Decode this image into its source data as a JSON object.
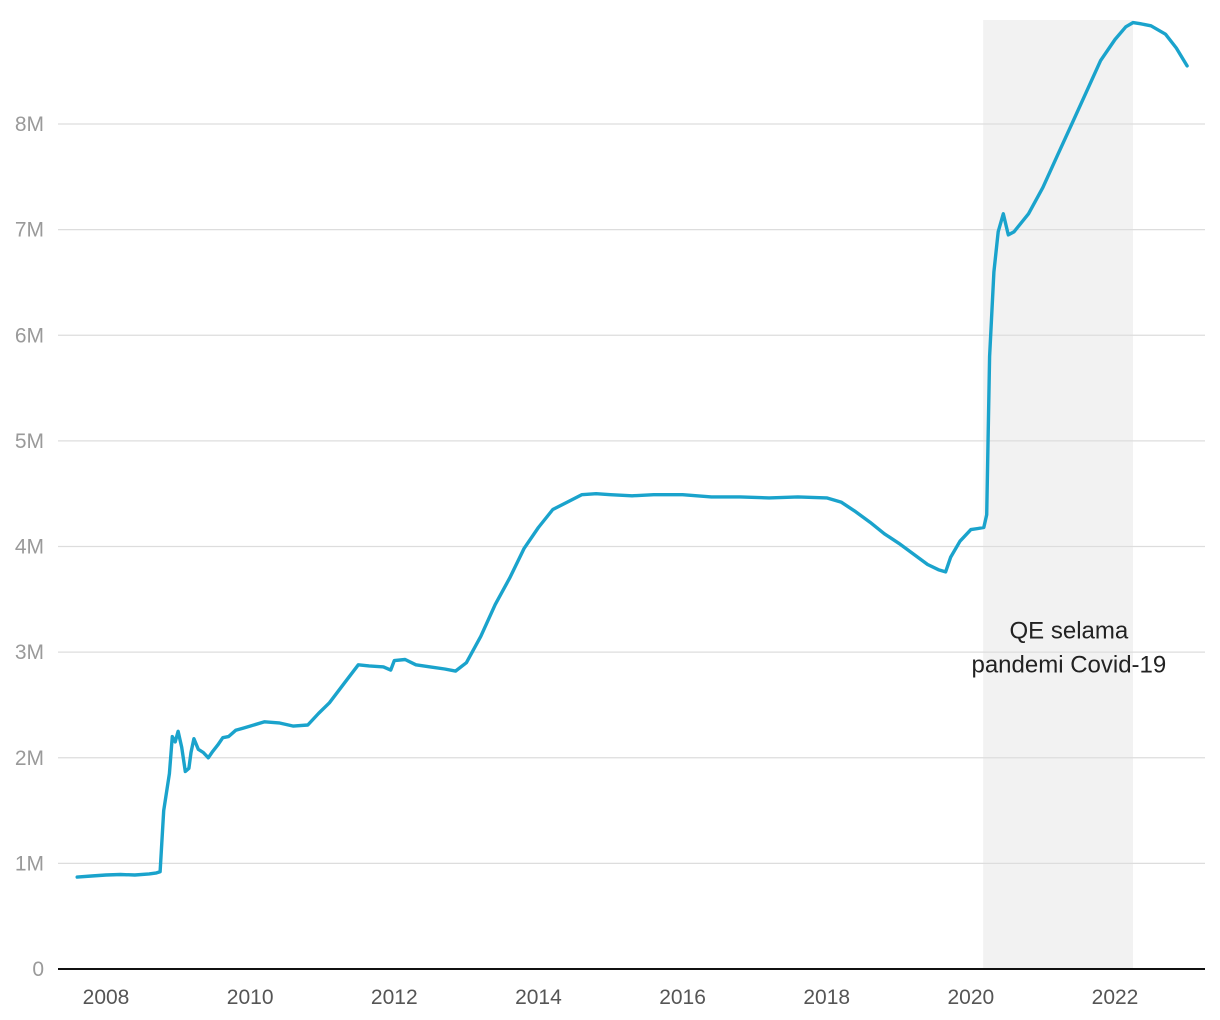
{
  "chart_data": {
    "type": "line",
    "title": "",
    "xlabel": "",
    "ylabel": "",
    "xlim": [
      2007.4,
      2023.25
    ],
    "ylim": [
      0,
      9000000
    ],
    "y_ticks": [
      {
        "value": 0,
        "label": "0"
      },
      {
        "value": 1000000,
        "label": "1M"
      },
      {
        "value": 2000000,
        "label": "2M"
      },
      {
        "value": 3000000,
        "label": "3M"
      },
      {
        "value": 4000000,
        "label": "4M"
      },
      {
        "value": 5000000,
        "label": "5M"
      },
      {
        "value": 6000000,
        "label": "6M"
      },
      {
        "value": 7000000,
        "label": "7M"
      },
      {
        "value": 8000000,
        "label": "8M"
      }
    ],
    "x_ticks": [
      {
        "value": 2008,
        "label": "2008"
      },
      {
        "value": 2010,
        "label": "2010"
      },
      {
        "value": 2012,
        "label": "2012"
      },
      {
        "value": 2014,
        "label": "2014"
      },
      {
        "value": 2016,
        "label": "2016"
      },
      {
        "value": 2018,
        "label": "2018"
      },
      {
        "value": 2020,
        "label": "2020"
      },
      {
        "value": 2022,
        "label": "2022"
      }
    ],
    "grid": true,
    "series": [
      {
        "color": "#1aa3cc",
        "x": [
          2007.6,
          2007.8,
          2008.0,
          2008.2,
          2008.4,
          2008.6,
          2008.7,
          2008.75,
          2008.8,
          2008.88,
          2008.92,
          2008.96,
          2009.0,
          2009.05,
          2009.1,
          2009.15,
          2009.18,
          2009.22,
          2009.28,
          2009.35,
          2009.42,
          2009.48,
          2009.55,
          2009.62,
          2009.7,
          2009.8,
          2009.9,
          2010.0,
          2010.2,
          2010.4,
          2010.6,
          2010.8,
          2010.95,
          2011.1,
          2011.3,
          2011.5,
          2011.65,
          2011.85,
          2011.95,
          2012.0,
          2012.15,
          2012.3,
          2012.5,
          2012.7,
          2012.85,
          2013.0,
          2013.2,
          2013.4,
          2013.6,
          2013.8,
          2014.0,
          2014.2,
          2014.4,
          2014.6,
          2014.8,
          2015.0,
          2015.3,
          2015.6,
          2016.0,
          2016.4,
          2016.8,
          2017.2,
          2017.6,
          2018.0,
          2018.2,
          2018.4,
          2018.6,
          2018.8,
          2019.0,
          2019.2,
          2019.4,
          2019.55,
          2019.65,
          2019.72,
          2019.85,
          2020.0,
          2020.1,
          2020.18,
          2020.22,
          2020.26,
          2020.32,
          2020.38,
          2020.45,
          2020.52,
          2020.6,
          2020.8,
          2021.0,
          2021.2,
          2021.4,
          2021.6,
          2021.8,
          2022.0,
          2022.15,
          2022.25,
          2022.35,
          2022.5,
          2022.7,
          2022.85,
          2023.0
        ],
        "y": [
          870000,
          880000,
          890000,
          895000,
          890000,
          900000,
          910000,
          920000,
          1500000,
          1850000,
          2200000,
          2150000,
          2250000,
          2100000,
          1870000,
          1900000,
          2050000,
          2180000,
          2080000,
          2050000,
          2000000,
          2060000,
          2120000,
          2190000,
          2200000,
          2260000,
          2280000,
          2300000,
          2340000,
          2330000,
          2300000,
          2310000,
          2420000,
          2520000,
          2700000,
          2880000,
          2870000,
          2860000,
          2830000,
          2920000,
          2930000,
          2880000,
          2860000,
          2840000,
          2820000,
          2900000,
          3150000,
          3450000,
          3700000,
          3980000,
          4180000,
          4350000,
          4420000,
          4490000,
          4500000,
          4490000,
          4480000,
          4490000,
          4490000,
          4470000,
          4470000,
          4460000,
          4470000,
          4460000,
          4420000,
          4330000,
          4230000,
          4120000,
          4030000,
          3930000,
          3830000,
          3780000,
          3760000,
          3900000,
          4050000,
          4160000,
          4170000,
          4180000,
          4300000,
          5800000,
          6600000,
          6980000,
          7150000,
          6950000,
          6980000,
          7150000,
          7400000,
          7700000,
          8000000,
          8300000,
          8600000,
          8800000,
          8920000,
          8960000,
          8950000,
          8930000,
          8850000,
          8720000,
          8550000
        ]
      }
    ],
    "shaded_region": {
      "x_start": 2020.17,
      "x_end": 2022.25
    },
    "annotation": {
      "lines": [
        "QE selama",
        "pandemi Covid-19"
      ],
      "x": 2021.36,
      "y": 2900000
    }
  }
}
